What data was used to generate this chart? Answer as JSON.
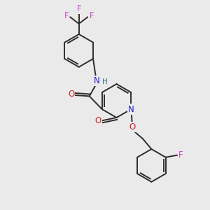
{
  "bg_color": "#eaeaea",
  "bond_color": "#2d2d2d",
  "N_color": "#2222cc",
  "O_color": "#cc2222",
  "F_color": "#cc44cc",
  "H_color": "#2d6b8a",
  "figsize": [
    3.0,
    3.0
  ],
  "dpi": 100,
  "xlim": [
    0,
    10
  ],
  "ylim": [
    0,
    10
  ]
}
